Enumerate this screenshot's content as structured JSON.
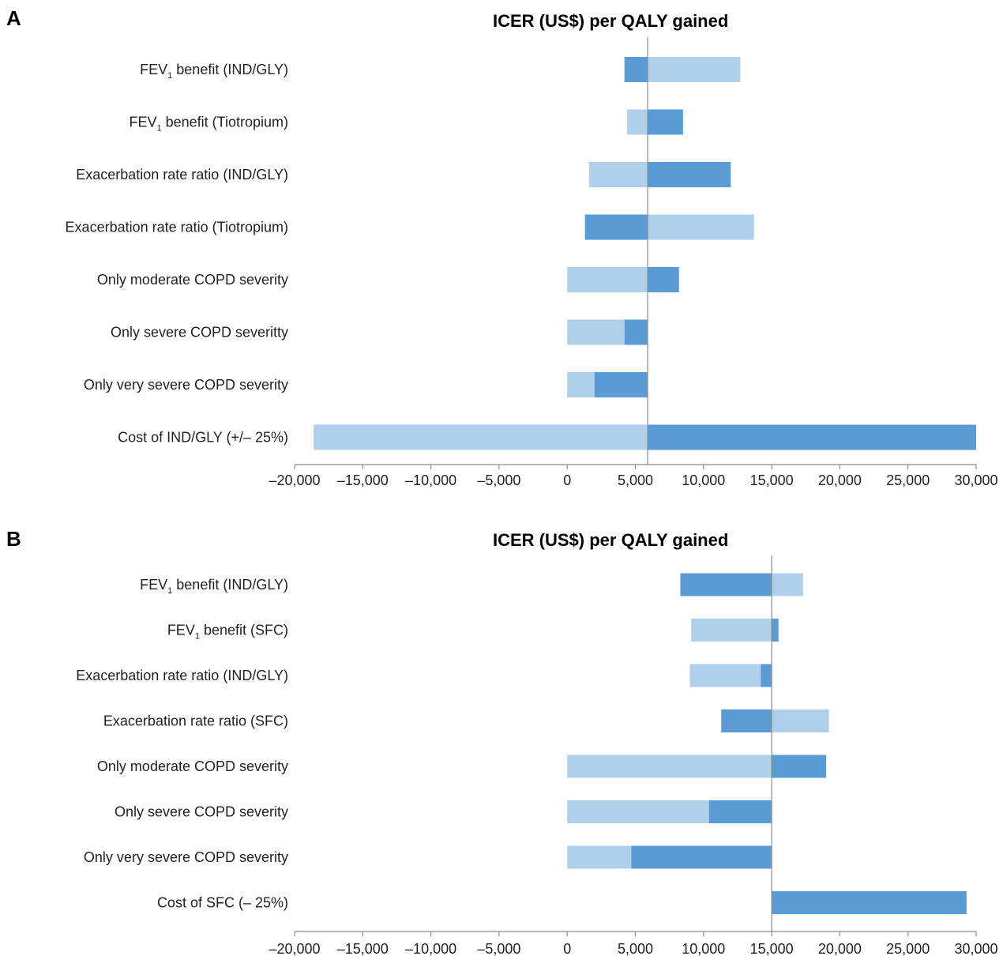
{
  "colors": {
    "light_bar": "#b0cfea",
    "dark_bar": "#5b9bd5",
    "axis": "#8c8c8c"
  },
  "chart_data": [
    {
      "panel_label": "A",
      "type": "bar",
      "orientation": "horizontal",
      "subtype": "tornado",
      "title": "ICER (US$) per QALY gained",
      "xlim": [
        -20000,
        30000
      ],
      "x_ticks": [
        -20000,
        -15000,
        -10000,
        -5000,
        0,
        5000,
        10000,
        15000,
        20000,
        25000,
        30000
      ],
      "x_tick_labels": [
        "–20,000",
        "–15,000",
        "–10,000",
        "–5,000",
        "0",
        "5,000",
        "10,000",
        "15,000",
        "20,000",
        "25,000",
        "30,000"
      ],
      "base_value": 5900,
      "grid": false,
      "rows": [
        {
          "label": "FEV",
          "sub": "1",
          "rest": " benefit (IND/GLY)",
          "light": [
            5900,
            12700
          ],
          "dark": [
            4200,
            5900
          ]
        },
        {
          "label": "FEV",
          "sub": "1",
          "rest": " benefit (Tiotropium)",
          "light": [
            4400,
            5900
          ],
          "dark": [
            5900,
            8500
          ]
        },
        {
          "label": "Exacerbation rate ratio (IND/GLY)",
          "light": [
            1600,
            5900
          ],
          "dark": [
            5900,
            12000
          ]
        },
        {
          "label": "Exacerbation rate ratio (Tiotropium)",
          "light": [
            5900,
            13700
          ],
          "dark": [
            1300,
            5900
          ]
        },
        {
          "label": "Only moderate COPD severity",
          "light": [
            0,
            5900
          ],
          "dark": [
            5900,
            8200
          ]
        },
        {
          "label": "Only severe COPD severitty",
          "light": [
            0,
            4200
          ],
          "dark": [
            4200,
            5900
          ]
        },
        {
          "label": "Only very severe COPD severity",
          "light": [
            0,
            2000
          ],
          "dark": [
            2000,
            5900
          ]
        },
        {
          "label": "Cost of IND/GLY (+/– 25%)",
          "light": [
            -18600,
            5900
          ],
          "dark": [
            5900,
            30000
          ]
        }
      ]
    },
    {
      "panel_label": "B",
      "type": "bar",
      "orientation": "horizontal",
      "subtype": "tornado",
      "title": "ICER (US$) per QALY gained",
      "xlim": [
        -20000,
        30000
      ],
      "x_ticks": [
        -20000,
        -15000,
        -10000,
        -5000,
        0,
        5000,
        10000,
        15000,
        20000,
        25000,
        30000
      ],
      "x_tick_labels": [
        "–20,000",
        "–15,000",
        "–10,000",
        "–5,000",
        "0",
        "5,000",
        "10,000",
        "15,000",
        "20,000",
        "25,000",
        "30,000"
      ],
      "base_value": 15000,
      "grid": false,
      "rows": [
        {
          "label": "FEV",
          "sub": "1",
          "rest": " benefit (IND/GLY)",
          "light": [
            15000,
            17300
          ],
          "dark": [
            8300,
            15000
          ]
        },
        {
          "label": "FEV",
          "sub": "1",
          "rest": " benefit (SFC)",
          "light": [
            9100,
            15000
          ],
          "dark": [
            15000,
            15500
          ]
        },
        {
          "label": "Exacerbation rate ratio (IND/GLY)",
          "light": [
            9000,
            14200
          ],
          "dark": [
            14200,
            15000
          ]
        },
        {
          "label": "Exacerbation rate ratio (SFC)",
          "light": [
            15000,
            19200
          ],
          "dark": [
            11300,
            15000
          ]
        },
        {
          "label": "Only moderate COPD severity",
          "light": [
            0,
            15000
          ],
          "dark": [
            15000,
            19000
          ]
        },
        {
          "label": "Only severe COPD severity",
          "light": [
            0,
            10400
          ],
          "dark": [
            10400,
            15000
          ]
        },
        {
          "label": "Only very severe COPD severity",
          "light": [
            0,
            4700
          ],
          "dark": [
            4700,
            15000
          ]
        },
        {
          "label": "Cost of SFC (– 25%)",
          "light": null,
          "dark": [
            15000,
            29300
          ]
        }
      ]
    }
  ]
}
